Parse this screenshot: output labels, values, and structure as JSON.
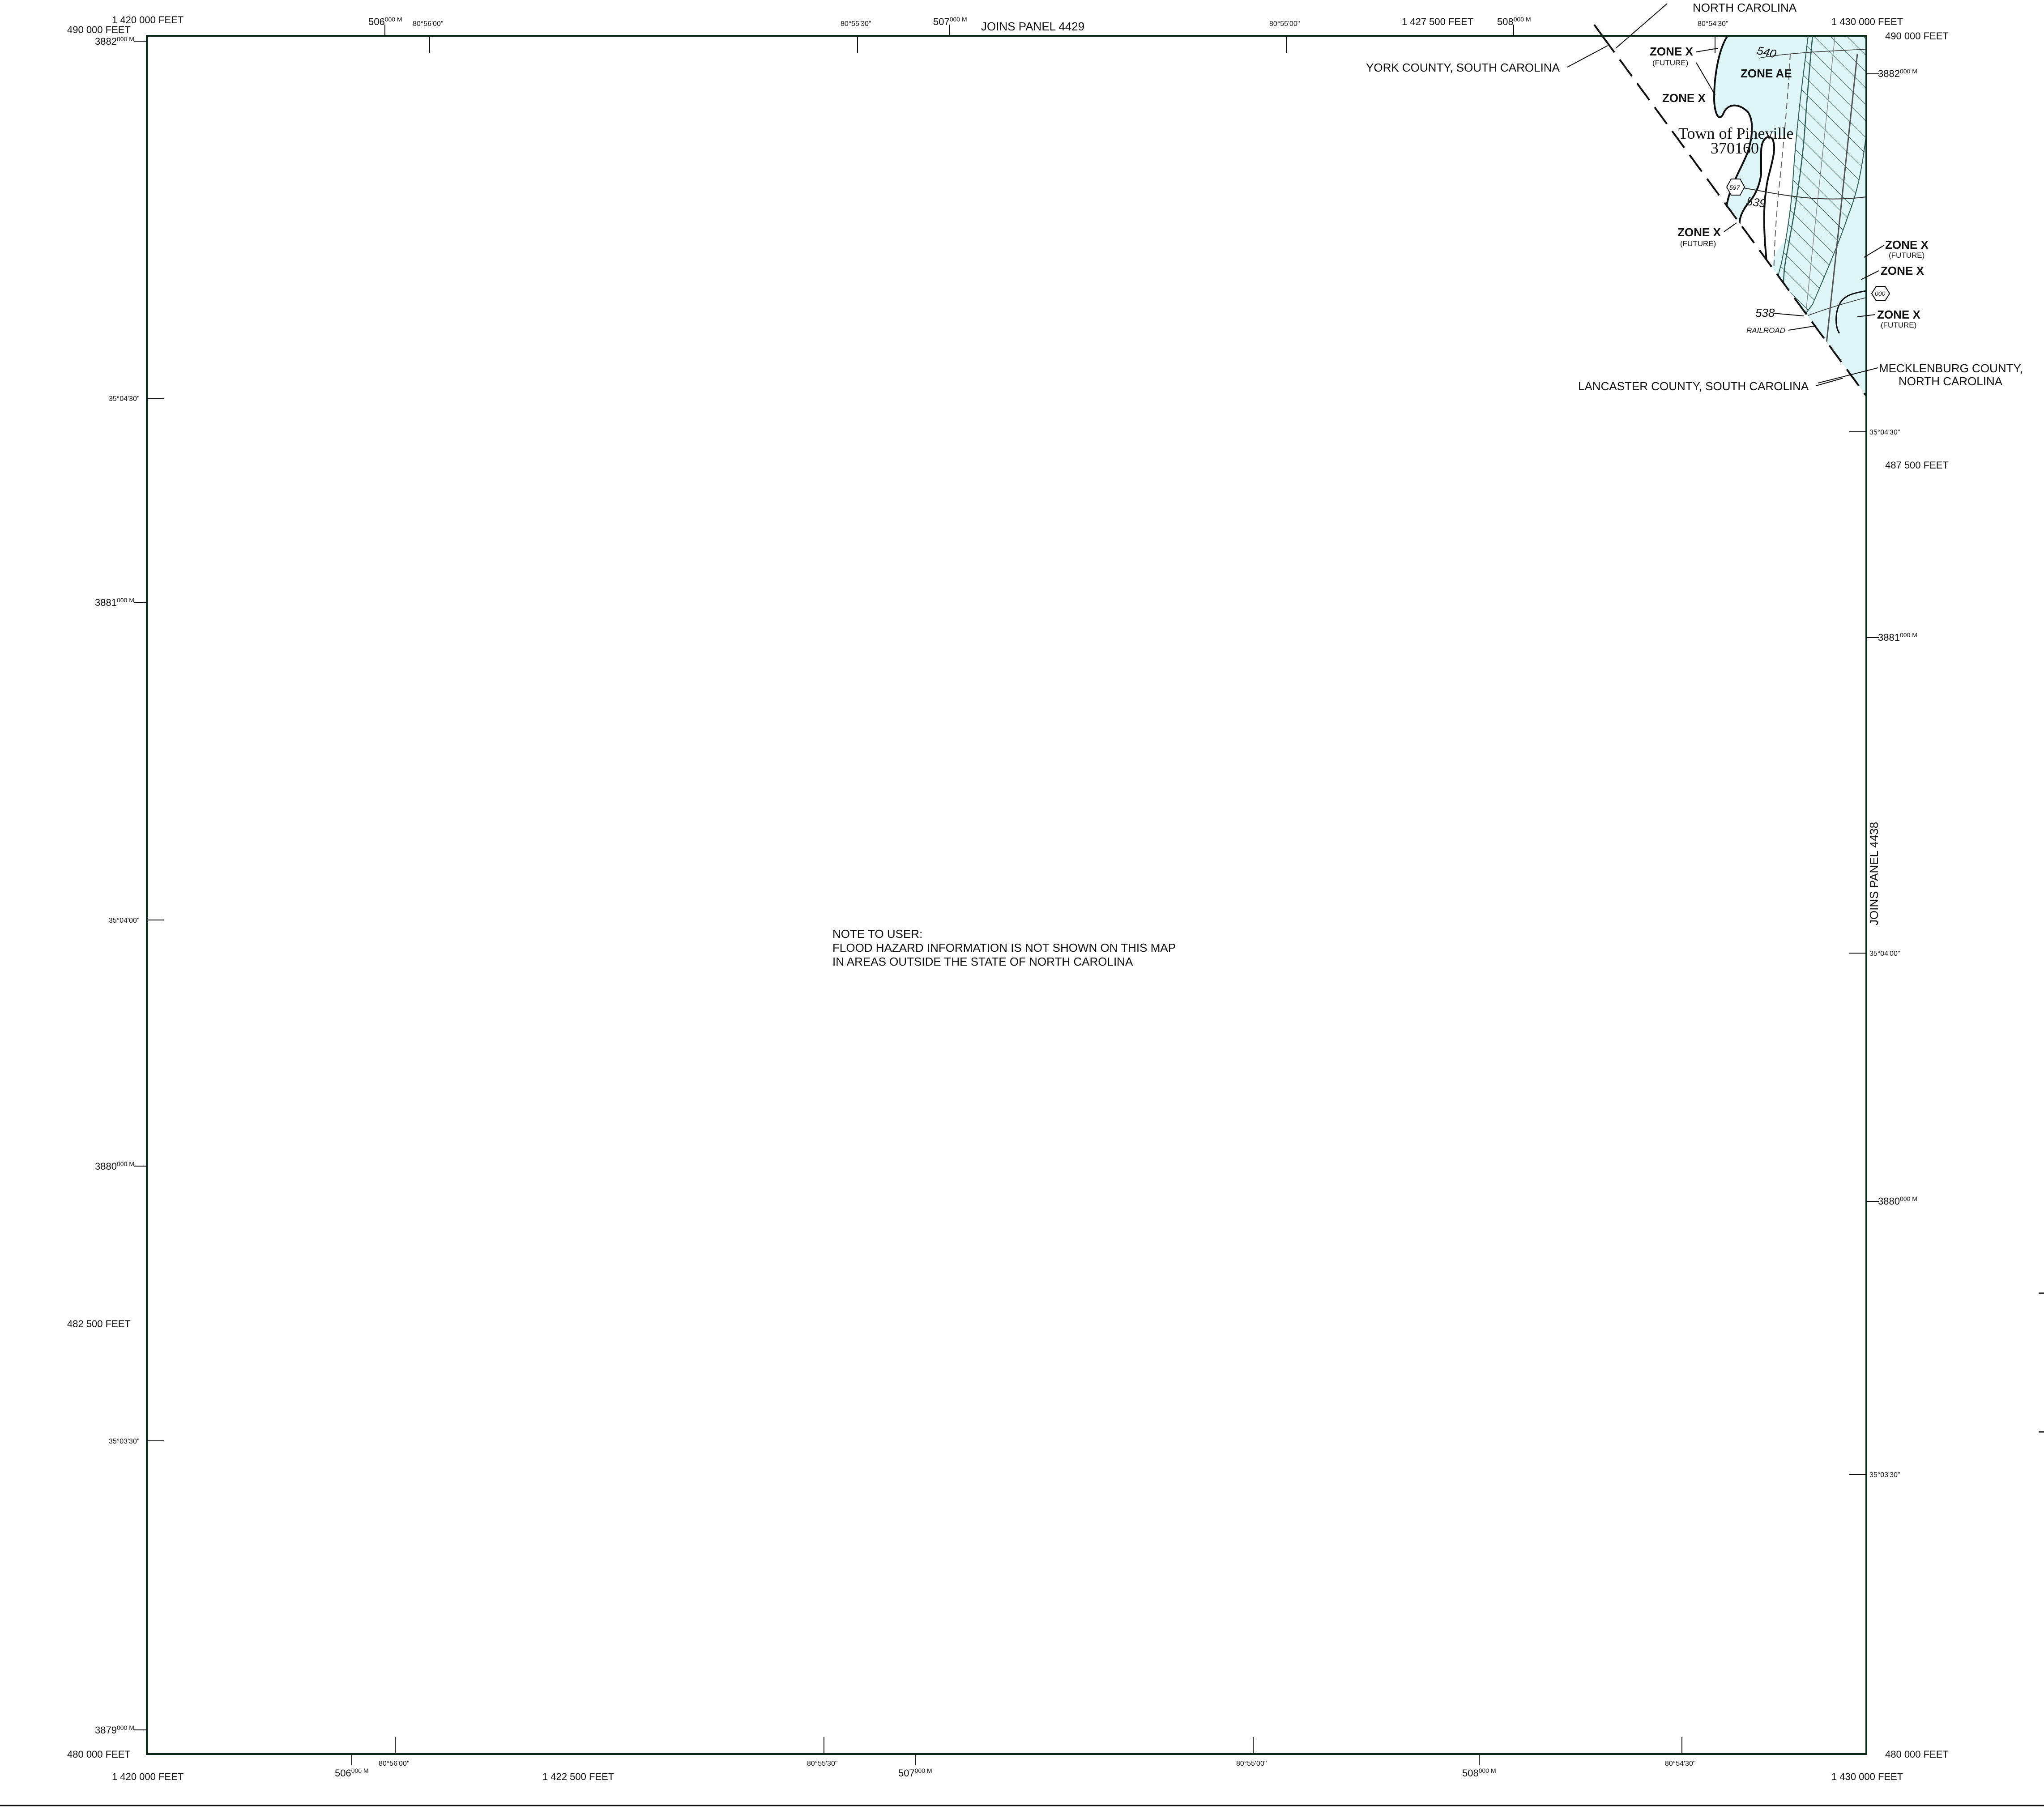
{
  "colors": {
    "neatline": "#0b2a17",
    "flood_fill": "#dff6f9",
    "hatch": "#2f5f55",
    "ink": "#111111"
  },
  "top_labels": {
    "feet_left": "1 420 000 FEET",
    "feet_mid": "1 427 500 FEET",
    "feet_right": "1 430 000 FEET",
    "m506": "506",
    "m507": "507",
    "m508": "508",
    "sup_m": "000 M",
    "lon_56_00": "80°56'00\"",
    "lon_55_30": "80°55'30\"",
    "lon_55_00": "80°55'00\"",
    "lon_54_30": "80°54'30\"",
    "joins_panel": "JOINS PANEL 4429"
  },
  "bottom_labels": {
    "feet_left": "1 420 000 FEET",
    "feet_mid": "1 422 500 FEET",
    "feet_right": "1 430 000 FEET",
    "m506": "506",
    "m507": "507",
    "m508": "508",
    "sup_m": "000 M",
    "lon_56_00": "80°56'00\"",
    "lon_55_30": "80°55'30\"",
    "lon_55_00": "80°55'00\"",
    "lon_54_30": "80°54'30\""
  },
  "left_labels": {
    "feet_490": "490 000 FEET",
    "feet_482": "482 500 FEET",
    "feet_480": "480 000 FEET",
    "m3882": "3882",
    "m3881": "3881",
    "m3880": "3880",
    "m3879": "3879",
    "sup_m": "000 M",
    "lat_04_30": "35°04'30\"",
    "lat_04_00": "35°04'00\"",
    "lat_03_30": "35°03'30\""
  },
  "right_labels": {
    "feet_490": "490 000 FEET",
    "feet_487": "487 500 FEET",
    "feet_480": "480 000 FEET",
    "m3882": "3882",
    "m3881": "3881",
    "m3880": "3880",
    "sup_m": "000 M",
    "lat_04_30": "35°04'30\"",
    "lat_04_00": "35°04'00\"",
    "lat_03_30": "35°03'30\"",
    "joins_panel": "JOINS PANEL 4438"
  },
  "map_labels": {
    "nc_top": "NORTH CAROLINA",
    "york_county": "YORK COUNTY, SOUTH CAROLINA",
    "lancaster_county": "LANCASTER COUNTY, SOUTH CAROLINA",
    "mecklenburg_line1": "MECKLENBURG COUNTY,",
    "mecklenburg_line2": "NORTH CAROLINA",
    "zone_x": "ZONE X",
    "zone_ae": "ZONE AE",
    "future": "(FUTURE)",
    "town_line1": "Town of Pineville",
    "town_line2": "370160",
    "elev_540": "540",
    "elev_539": "539",
    "elev_538": "538",
    "railroad": "RAILROAD",
    "shield_597": "597",
    "shield_000": "000"
  },
  "note": {
    "line1": "NOTE TO USER:",
    "line2": "FLOOD HAZARD INFORMATION IS NOT SHOWN ON THIS MAP",
    "line3": "IN AREAS OUTSIDE THE STATE OF NORTH CAROLINA"
  }
}
